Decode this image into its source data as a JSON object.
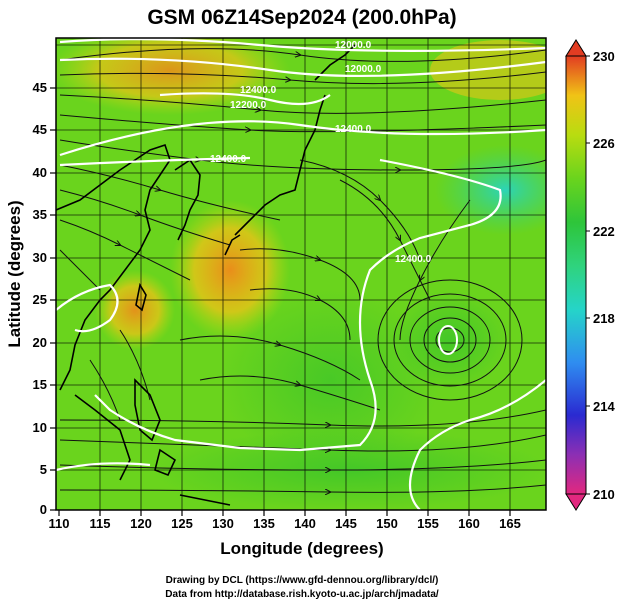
{
  "figure": {
    "title": "GSM 06Z14Sep2024 (200.0hPa)",
    "xlabel": "Longitude (degrees)",
    "ylabel": "Latitude  (degrees)",
    "credit_line1": "Drawing by DCL (https://www.gfd-dennou.org/library/dcl/)",
    "credit_line2": "Data from http://database.rish.kyoto-u.ac.jp/arch/jmadata/"
  },
  "chart_data": {
    "type": "heatmap",
    "title": "GSM 06Z14Sep2024 (200.0hPa)",
    "xlabel": "Longitude (degrees)",
    "ylabel": "Latitude  (degrees)",
    "xlim": [
      110,
      170
    ],
    "ylim": [
      0,
      50
    ],
    "xticks": [
      "110",
      "115",
      "120",
      "125",
      "130",
      "135",
      "140",
      "145",
      "150",
      "155",
      "160",
      "165"
    ],
    "yticks": [
      "0",
      "5",
      "10",
      "15",
      "20",
      "25",
      "30",
      "35",
      "40",
      "45"
    ],
    "grid": true,
    "colorbar": {
      "ticks": [
        "230",
        "226",
        "222",
        "218",
        "214",
        "210"
      ],
      "range": [
        210,
        230
      ],
      "colors": [
        "#e2287f",
        "#8c2fb4",
        "#2a2ad1",
        "#2f8df0",
        "#25d4c9",
        "#2fd37e",
        "#2ec53a",
        "#6ad41d",
        "#b9dc10",
        "#f0c316",
        "#f08a1a",
        "#e23c22"
      ]
    },
    "contour_labels": [
      "12000.0",
      "12000.0",
      "12400.0",
      "12200.0",
      "12400.0",
      "12400.0",
      "12400.0"
    ],
    "features": [
      "temperature shading",
      "geopotential height contours",
      "streamlines",
      "coastlines",
      "cyclonic circulation near 157E 20N"
    ]
  }
}
